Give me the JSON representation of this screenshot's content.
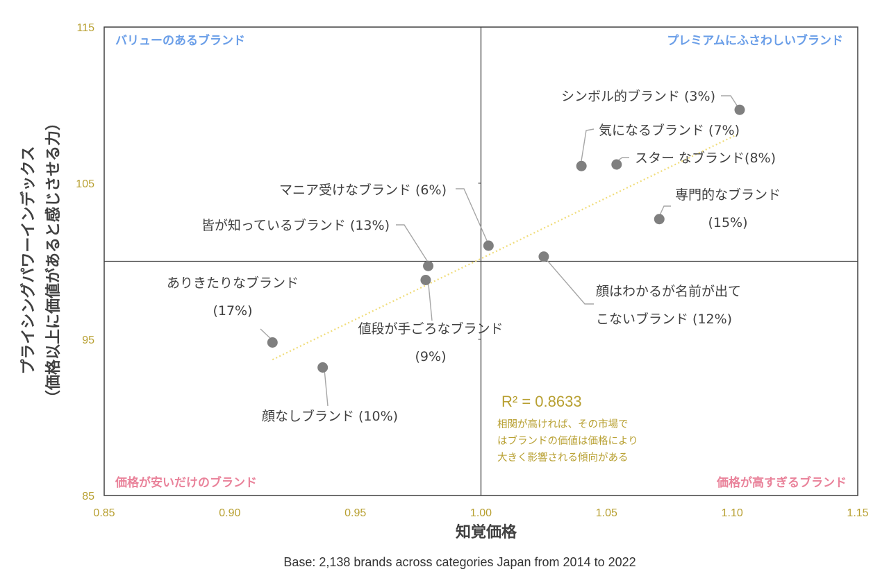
{
  "chart_data": {
    "type": "scatter",
    "xlabel": "知覚価格",
    "ylabel_line1": "プライシングパワーインデックス",
    "ylabel_line2": "（価格以上に価値があると感じさせる力）",
    "xlim": [
      0.85,
      1.15
    ],
    "ylim": [
      85,
      115
    ],
    "x_ticks": [
      "0.85",
      "0.90",
      "0.95",
      "1.00",
      "1.05",
      "1.10",
      "1.15"
    ],
    "y_ticks": [
      "85",
      "95",
      "105",
      "115"
    ],
    "grid": false,
    "quadrant_divider": {
      "x": 1.0,
      "y": 100
    },
    "quadrants": {
      "top_left": "バリューのあるブランド",
      "top_right": "プレミアムにふさわしいブランド",
      "bottom_left": "価格が安いだけのブランド",
      "bottom_right": "価格が高すぎるブランド"
    },
    "points": [
      {
        "x": 1.103,
        "y": 109.7,
        "label": [
          "シンボル的ブランド (3%)"
        ]
      },
      {
        "x": 1.04,
        "y": 106.1,
        "label": [
          "気になるブランド (7%)"
        ]
      },
      {
        "x": 1.054,
        "y": 106.2,
        "label": [
          "スター なブランド(8%)"
        ]
      },
      {
        "x": 1.071,
        "y": 102.7,
        "label": [
          "専門的なブランド",
          "(15%)"
        ]
      },
      {
        "x": 1.003,
        "y": 101.0,
        "label": [
          "マニア受けなブランド (6%)"
        ]
      },
      {
        "x": 0.979,
        "y": 99.7,
        "label": [
          "皆が知っているブランド (13%)"
        ]
      },
      {
        "x": 1.025,
        "y": 100.3,
        "label": [
          "顔はわかるが名前が出て",
          "こないブランド (12%)"
        ]
      },
      {
        "x": 0.978,
        "y": 98.8,
        "label": [
          "値段が手ごろなブランド",
          "(9%)"
        ]
      },
      {
        "x": 0.917,
        "y": 94.8,
        "label": [
          "ありきたりなブランド",
          "(17%)"
        ]
      },
      {
        "x": 0.937,
        "y": 93.2,
        "label": [
          "顔なしブランド (10%)"
        ]
      }
    ],
    "trendline": {
      "x": [
        0.917,
        1.103
      ],
      "y": [
        93.7,
        108.2
      ],
      "r_squared_label": "R² = 0.8633"
    },
    "annotation": [
      "相関が高ければ、その市場で",
      "はブランドの価値は価格により",
      "大きく影響される傾向がある"
    ],
    "footer": "Base: 2,138 brands  across categories Japan from 2014 to 2022"
  },
  "colors": {
    "axis_tick": "#b8a032",
    "quadrant_top": "#6a9ee8",
    "quadrant_bottom": "#e9829a",
    "point": "#7f7f7f",
    "trendline": "#f0dc78",
    "leader": "#a6a6a6"
  }
}
